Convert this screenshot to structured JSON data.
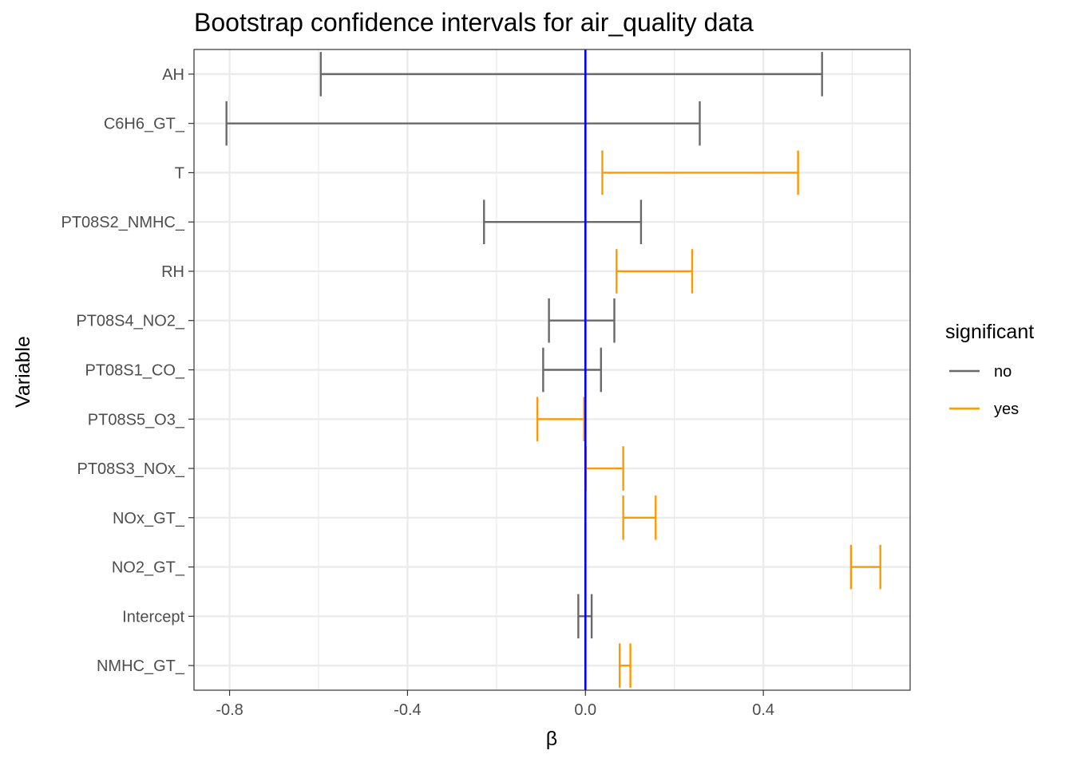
{
  "chart_data": {
    "type": "errorbar",
    "orientation": "horizontal",
    "title": "Bootstrap confidence intervals for air_quality data",
    "xlabel": "β",
    "ylabel": "Variable",
    "xlim": [
      -0.88,
      0.73
    ],
    "xticks": [
      -0.8,
      -0.4,
      0.0,
      0.4
    ],
    "xtick_labels": [
      "-0.8",
      "-0.4",
      "0.0",
      "0.4"
    ],
    "grid": true,
    "reference_line": {
      "x": 0,
      "color": "#0000ff"
    },
    "legend": {
      "title": "significant",
      "position": "right",
      "entries": [
        {
          "label": "no",
          "color": "#696969"
        },
        {
          "label": "yes",
          "color": "#ff9900"
        }
      ]
    },
    "categories": [
      "AH",
      "C6H6_GT_",
      "T",
      "PT08S2_NMHC_",
      "RH",
      "PT08S4_NO2_",
      "PT08S1_CO_",
      "PT08S5_O3_",
      "PT08S3_NOx_",
      "NOx_GT_",
      "NO2_GT_",
      "Intercept",
      "NMHC_GT_"
    ],
    "intervals": [
      {
        "variable": "AH",
        "lower": -0.595,
        "upper": 0.532,
        "significant": "no"
      },
      {
        "variable": "C6H6_GT_",
        "lower": -0.807,
        "upper": 0.257,
        "significant": "no"
      },
      {
        "variable": "T",
        "lower": 0.038,
        "upper": 0.478,
        "significant": "yes"
      },
      {
        "variable": "PT08S2_NMHC_",
        "lower": -0.228,
        "upper": 0.125,
        "significant": "no"
      },
      {
        "variable": "RH",
        "lower": 0.07,
        "upper": 0.24,
        "significant": "yes"
      },
      {
        "variable": "PT08S4_NO2_",
        "lower": -0.082,
        "upper": 0.065,
        "significant": "no"
      },
      {
        "variable": "PT08S1_CO_",
        "lower": -0.095,
        "upper": 0.035,
        "significant": "no"
      },
      {
        "variable": "PT08S5_O3_",
        "lower": -0.108,
        "upper": -0.003,
        "significant": "yes"
      },
      {
        "variable": "PT08S3_NOx_",
        "lower": 0.001,
        "upper": 0.085,
        "significant": "yes"
      },
      {
        "variable": "NOx_GT_",
        "lower": 0.085,
        "upper": 0.158,
        "significant": "yes"
      },
      {
        "variable": "NO2_GT_",
        "lower": 0.597,
        "upper": 0.663,
        "significant": "yes"
      },
      {
        "variable": "Intercept",
        "lower": -0.016,
        "upper": 0.014,
        "significant": "no"
      },
      {
        "variable": "NMHC_GT_",
        "lower": 0.077,
        "upper": 0.101,
        "significant": "yes"
      }
    ]
  }
}
